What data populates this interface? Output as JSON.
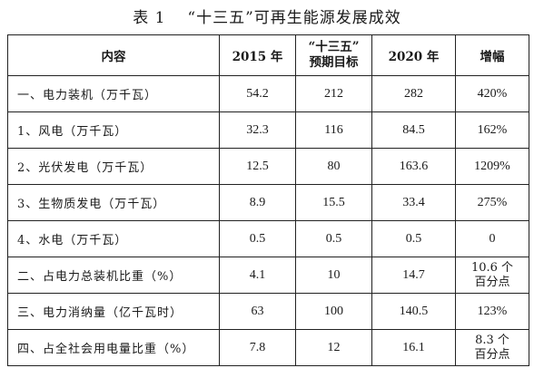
{
  "caption": {
    "label": "表 1",
    "title": "“十三五”可再生能源发展成效"
  },
  "table": {
    "headers": [
      {
        "line1": "内容",
        "line2": ""
      },
      {
        "line1": "2015 年",
        "line2": ""
      },
      {
        "line1": "“十三五”",
        "line2": "预期目标"
      },
      {
        "line1": "2020 年",
        "line2": ""
      },
      {
        "line1": "增幅",
        "line2": ""
      }
    ],
    "rows": [
      {
        "label": "一、电力装机（万千瓦）",
        "y2015": "54.2",
        "target": "212",
        "y2020": "282",
        "growth": "420%",
        "growth2": ""
      },
      {
        "label": "1、风电（万千瓦）",
        "y2015": "32.3",
        "target": "116",
        "y2020": "84.5",
        "growth": "162%",
        "growth2": ""
      },
      {
        "label": "2、光伏发电（万千瓦）",
        "y2015": "12.5",
        "target": "80",
        "y2020": "163.6",
        "growth": "1209%",
        "growth2": ""
      },
      {
        "label": "3、生物质发电（万千瓦）",
        "y2015": "8.9",
        "target": "15.5",
        "y2020": "33.4",
        "growth": "275%",
        "growth2": ""
      },
      {
        "label": "4、水电（万千瓦）",
        "y2015": "0.5",
        "target": "0.5",
        "y2020": "0.5",
        "growth": "0",
        "growth2": ""
      },
      {
        "label": "二、占电力总装机比重（%）",
        "y2015": "4.1",
        "target": "10",
        "y2020": "14.7",
        "growth": "10.6 个",
        "growth2": "百分点"
      },
      {
        "label": "三、电力消纳量（亿千瓦时）",
        "y2015": "63",
        "target": "100",
        "y2020": "140.5",
        "growth": "123%",
        "growth2": ""
      },
      {
        "label": "四、占全社会用电量比重（%）",
        "y2015": "7.8",
        "target": "12",
        "y2020": "16.1",
        "growth": "8.3 个",
        "growth2": "百分点"
      }
    ]
  }
}
